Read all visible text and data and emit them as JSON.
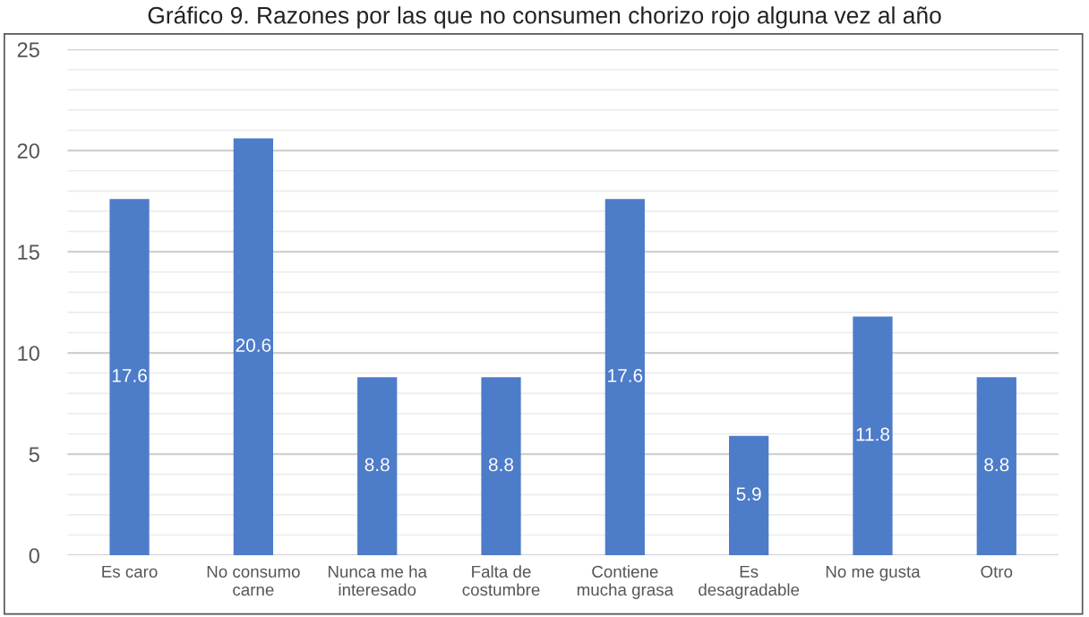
{
  "chart_data": {
    "type": "bar",
    "title": "Gráfico 9. Razones por las que no consumen chorizo rojo alguna vez al año",
    "categories": [
      "Es caro",
      "No consumo\ncarne",
      "Nunca me ha\ninteresado",
      "Falta de\ncostumbre",
      "Contiene\nmucha grasa",
      "Es\ndesagradable",
      "No me gusta",
      "Otro"
    ],
    "values": [
      17.6,
      20.6,
      8.8,
      8.8,
      17.6,
      5.9,
      11.8,
      8.8
    ],
    "color": "#4d7cc9",
    "data_labels": true,
    "grid": "y",
    "ylim": [
      0,
      25
    ],
    "yticks": [
      0,
      {
        "value": 1,
        "label": null
      },
      {
        "value": 2,
        "label": null
      },
      {
        "value": 3,
        "label": null
      },
      {
        "value": 4,
        "label": null
      },
      5,
      {
        "value": 6,
        "label": null
      },
      {
        "value": 7,
        "label": null
      },
      {
        "value": 8,
        "label": null
      },
      {
        "value": 9,
        "label": null
      },
      10,
      {
        "value": 11,
        "label": null
      },
      {
        "value": 12,
        "label": null
      },
      {
        "value": 13,
        "label": null
      },
      {
        "value": 14,
        "label": null
      },
      15,
      {
        "value": 16,
        "label": null
      },
      {
        "value": 17,
        "label": null
      },
      {
        "value": 18,
        "label": null
      },
      {
        "value": 19,
        "label": null
      },
      20,
      {
        "value": 21,
        "label": null
      },
      {
        "value": 22,
        "label": null
      },
      {
        "value": 23,
        "label": null
      },
      {
        "value": 24,
        "label": null
      },
      25
    ]
  }
}
